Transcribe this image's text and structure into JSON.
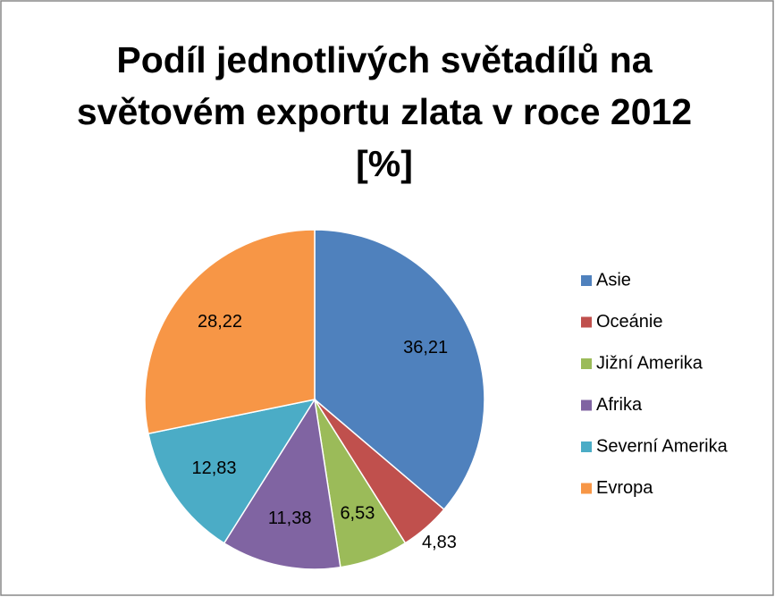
{
  "chart_data": {
    "type": "pie",
    "title": "Podíl jednotlivých světadílů na světovém exportu zlata v roce 2012 [%]",
    "categories": [
      "Asie",
      "Oceánie",
      "Jižní Amerika",
      "Afrika",
      "Severní Amerika",
      "Evropa"
    ],
    "values": [
      36.21,
      4.83,
      6.53,
      11.38,
      12.83,
      28.22
    ],
    "value_labels": [
      "36,21",
      "4,83",
      "6,53",
      "11,38",
      "12,83",
      "28,22"
    ],
    "colors": [
      "#4F81BD",
      "#C0504D",
      "#9BBB59",
      "#8064A2",
      "#4BACC6",
      "#F79646"
    ],
    "legend": "right"
  }
}
